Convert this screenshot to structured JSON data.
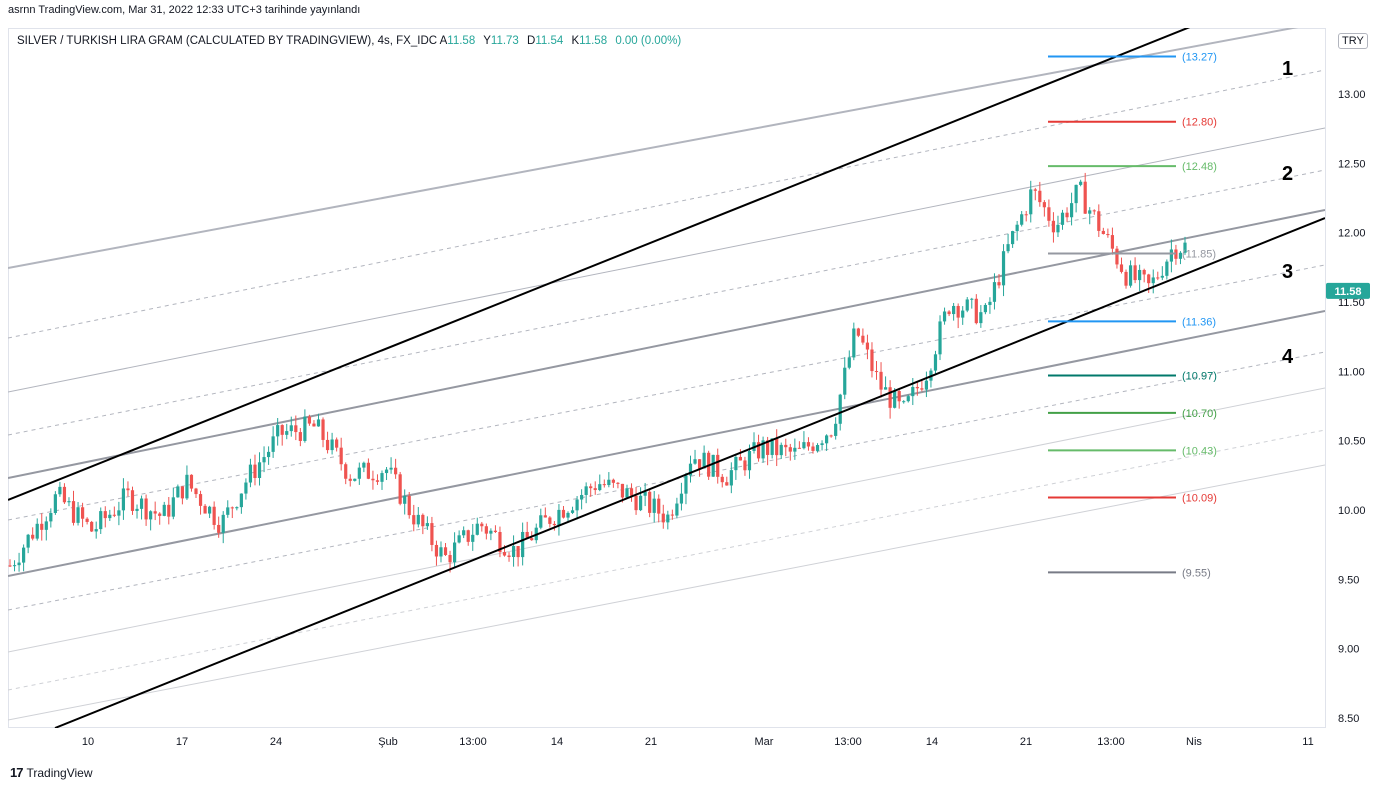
{
  "header": {
    "published": "asrnn TradingView.com, Mar 31, 2022 12:33 UTC+3 tarihinde yayınlandı",
    "symbol": "SILVER / TURKISH LIRA GRAM (CALCULATED BY TRADINGVIEW), 4s, FX_IDC",
    "ohlc": [
      {
        "k": "A",
        "v": "11.58"
      },
      {
        "k": "Y",
        "v": "11.73"
      },
      {
        "k": "D",
        "v": "11.54"
      },
      {
        "k": "K",
        "v": "11.58"
      }
    ],
    "change": "0.00 (0.00%)",
    "currency": "TRY"
  },
  "footer": {
    "logo_mark": "17",
    "logo_text": "TradingView"
  },
  "colors": {
    "up": "#26a69a",
    "down": "#ef5350",
    "trend": "#000000",
    "channel": "#9598a1",
    "grid_dash": "#b2b5be",
    "price_badge": "#26a69a"
  },
  "chart_data": {
    "type": "candlestick",
    "last_price": "11.58",
    "y_ticks": [
      "13.00",
      "12.50",
      "12.00",
      "11.50",
      "11.00",
      "10.50",
      "10.00",
      "9.50",
      "9.00",
      "8.50"
    ],
    "x_ticks": [
      "10",
      "17",
      "24",
      "Şub",
      "13:00",
      "14",
      "21",
      "Mar",
      "13:00",
      "14",
      "21",
      "13:00",
      "Nis",
      "11"
    ],
    "price_levels": [
      {
        "label": "(13.27)",
        "value": 13.27,
        "color": "#2196f3"
      },
      {
        "label": "(12.80)",
        "value": 12.8,
        "color": "#e53935"
      },
      {
        "label": "(12.48)",
        "value": 12.48,
        "color": "#66bb6a"
      },
      {
        "label": "(11.85)",
        "value": 11.85,
        "color": "#9598a1"
      },
      {
        "label": "(11.36)",
        "value": 11.36,
        "color": "#2196f3"
      },
      {
        "label": "(10.97)",
        "value": 10.97,
        "color": "#00796b"
      },
      {
        "label": "(10.70)",
        "value": 10.7,
        "color": "#43a047"
      },
      {
        "label": "(10.43)",
        "value": 10.43,
        "color": "#66bb6a"
      },
      {
        "label": "(10.09)",
        "value": 10.09,
        "color": "#e53935"
      },
      {
        "label": "(9.55)",
        "value": 9.55,
        "color": "#787b86"
      }
    ],
    "annotations": [
      "1",
      "2",
      "3",
      "4"
    ],
    "anchors": [
      {
        "x": 0,
        "c": 9.6
      },
      {
        "x": 0.04,
        "c": 10.1
      },
      {
        "x": 0.07,
        "c": 9.85
      },
      {
        "x": 0.1,
        "c": 10.1
      },
      {
        "x": 0.13,
        "c": 9.95
      },
      {
        "x": 0.15,
        "c": 10.2
      },
      {
        "x": 0.18,
        "c": 9.9
      },
      {
        "x": 0.2,
        "c": 10.2
      },
      {
        "x": 0.23,
        "c": 10.55
      },
      {
        "x": 0.26,
        "c": 10.6
      },
      {
        "x": 0.29,
        "c": 10.25
      },
      {
        "x": 0.32,
        "c": 10.3
      },
      {
        "x": 0.34,
        "c": 10.0
      },
      {
        "x": 0.37,
        "c": 9.65
      },
      {
        "x": 0.4,
        "c": 9.9
      },
      {
        "x": 0.43,
        "c": 9.7
      },
      {
        "x": 0.46,
        "c": 9.95
      },
      {
        "x": 0.5,
        "c": 10.2
      },
      {
        "x": 0.53,
        "c": 10.1
      },
      {
        "x": 0.56,
        "c": 9.95
      },
      {
        "x": 0.58,
        "c": 10.4
      },
      {
        "x": 0.61,
        "c": 10.25
      },
      {
        "x": 0.64,
        "c": 10.45
      },
      {
        "x": 0.67,
        "c": 10.4
      },
      {
        "x": 0.7,
        "c": 10.6
      },
      {
        "x": 0.72,
        "c": 11.3
      },
      {
        "x": 0.74,
        "c": 10.9
      },
      {
        "x": 0.76,
        "c": 10.7
      },
      {
        "x": 0.78,
        "c": 11.0
      },
      {
        "x": 0.8,
        "c": 11.5
      },
      {
        "x": 0.83,
        "c": 11.4
      },
      {
        "x": 0.85,
        "c": 11.9
      },
      {
        "x": 0.87,
        "c": 12.3
      },
      {
        "x": 0.89,
        "c": 12.05
      },
      {
        "x": 0.91,
        "c": 12.3
      },
      {
        "x": 0.93,
        "c": 12.0
      },
      {
        "x": 0.95,
        "c": 11.7
      },
      {
        "x": 0.97,
        "c": 11.6
      },
      {
        "x": 0.99,
        "c": 11.9
      }
    ]
  }
}
